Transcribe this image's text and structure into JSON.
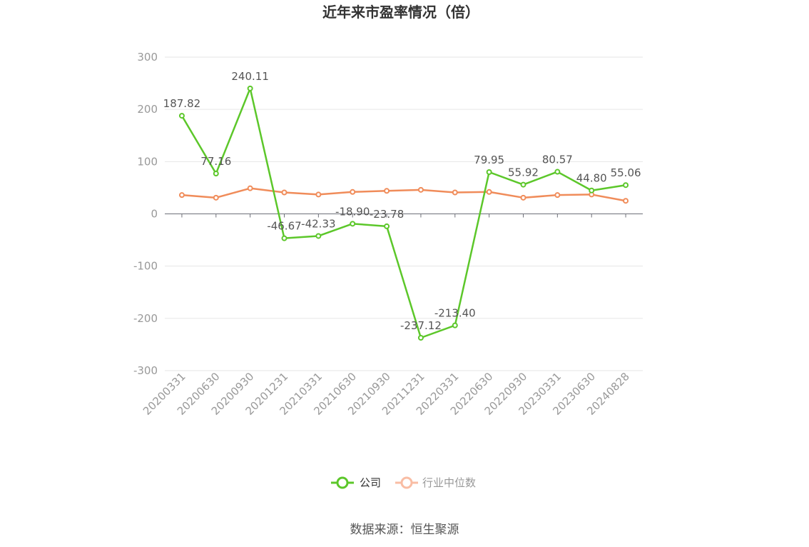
{
  "chart_data": {
    "type": "line",
    "title": "近年来市盈率情况（倍）",
    "x": [
      "20200331",
      "20200630",
      "20200930",
      "20201231",
      "20210331",
      "20210630",
      "20210930",
      "20211231",
      "20220331",
      "20220630",
      "20220930",
      "20230331",
      "20230630",
      "20240828"
    ],
    "ylim": [
      -300,
      300
    ],
    "yticks": [
      300,
      200,
      100,
      0,
      -100,
      -200,
      -300
    ],
    "grid": true,
    "legend_position": "bottom",
    "series": [
      {
        "name": "公司",
        "color": "#5cc72a",
        "values": [
          187.82,
          77.16,
          240.11,
          -46.67,
          -42.33,
          -18.9,
          -23.78,
          -237.12,
          -213.4,
          79.95,
          55.92,
          80.57,
          44.8,
          55.06
        ],
        "labels": [
          "187.82",
          "77.16",
          "240.11",
          "-46.67",
          "-42.33",
          "-18.90",
          "-23.78",
          "-237.12",
          "-213.40",
          "79.95",
          "55.92",
          "80.57",
          "44.80",
          "55.06"
        ]
      },
      {
        "name": "行业中位数",
        "color": "#f08c5a",
        "legend_color": "#f9bda4",
        "values": [
          36,
          31,
          49,
          41,
          37,
          42,
          44,
          46,
          41,
          42,
          31,
          36,
          37,
          25
        ]
      }
    ]
  },
  "source_text": "数据来源：恒生聚源"
}
